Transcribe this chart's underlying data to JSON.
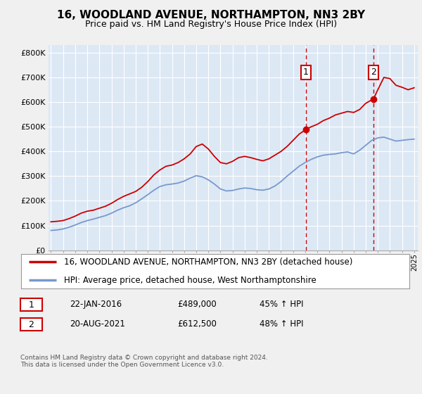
{
  "title": "16, WOODLAND AVENUE, NORTHAMPTON, NN3 2BY",
  "subtitle": "Price paid vs. HM Land Registry's House Price Index (HPI)",
  "ylabel_ticks": [
    "£0",
    "£100K",
    "£200K",
    "£300K",
    "£400K",
    "£500K",
    "£600K",
    "£700K",
    "£800K"
  ],
  "ytick_values": [
    0,
    100000,
    200000,
    300000,
    400000,
    500000,
    600000,
    700000,
    800000
  ],
  "ylim": [
    0,
    830000
  ],
  "xlim_start": 1994.8,
  "xlim_end": 2025.3,
  "legend_line1": "16, WOODLAND AVENUE, NORTHAMPTON, NN3 2BY (detached house)",
  "legend_line2": "HPI: Average price, detached house, West Northamptonshire",
  "sale1_label": "1",
  "sale1_date": "22-JAN-2016",
  "sale1_price": "£489,000",
  "sale1_hpi": "45% ↑ HPI",
  "sale1_x": 2016.055,
  "sale1_y": 489000,
  "sale2_label": "2",
  "sale2_date": "20-AUG-2021",
  "sale2_price": "£612,500",
  "sale2_hpi": "48% ↑ HPI",
  "sale2_x": 2021.635,
  "sale2_y": 612500,
  "footnote": "Contains HM Land Registry data © Crown copyright and database right 2024.\nThis data is licensed under the Open Government Licence v3.0.",
  "line_color_property": "#cc0000",
  "line_color_hpi": "#7799cc",
  "background_plot": "#dde8f5",
  "background_fig": "#f0f0f0",
  "grid_color": "#ffffff",
  "vline_color": "#cc0000",
  "marker_box_color": "#cc0000",
  "title_fontsize": 11,
  "subtitle_fontsize": 9
}
